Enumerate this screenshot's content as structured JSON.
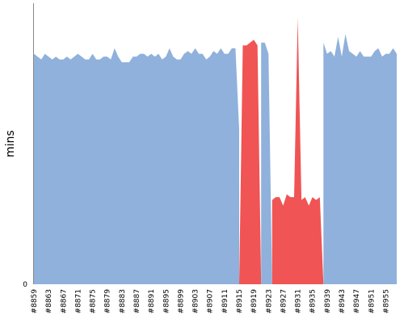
{
  "chart_data": {
    "type": "area",
    "ylabel": "mins",
    "xlabel": "",
    "ylim": [
      0,
      100
    ],
    "y_ticks": [
      0
    ],
    "x_tick_labels": [
      "#8859",
      "#8863",
      "#8867",
      "#8871",
      "#8875",
      "#8879",
      "#8883",
      "#8887",
      "#8891",
      "#8895",
      "#8899",
      "#8903",
      "#8907",
      "#8911",
      "#8915",
      "#8919",
      "#8923",
      "#8927",
      "#8931",
      "#8935",
      "#8939",
      "#8943",
      "#8947",
      "#8951",
      "#8955"
    ],
    "grid": false,
    "legend": "none",
    "x_start": 8859,
    "x_end": 8958,
    "colors": {
      "ok": "#8fb1db",
      "failed": "#f05454",
      "axis": "#888888"
    },
    "series": [
      {
        "status": "ok",
        "points": [
          [
            8859,
            82
          ],
          [
            8860,
            81
          ],
          [
            8861,
            80
          ],
          [
            8862,
            82
          ],
          [
            8863,
            81
          ],
          [
            8864,
            80
          ],
          [
            8865,
            81
          ],
          [
            8866,
            80
          ],
          [
            8867,
            80
          ],
          [
            8868,
            81
          ],
          [
            8869,
            80
          ],
          [
            8870,
            81
          ],
          [
            8871,
            82
          ],
          [
            8872,
            81
          ],
          [
            8873,
            80
          ],
          [
            8874,
            80
          ],
          [
            8875,
            82
          ],
          [
            8876,
            80
          ],
          [
            8877,
            80
          ],
          [
            8878,
            81
          ],
          [
            8879,
            81
          ],
          [
            8880,
            80
          ],
          [
            8881,
            84
          ],
          [
            8882,
            81
          ],
          [
            8883,
            79
          ],
          [
            8884,
            79
          ],
          [
            8885,
            79
          ],
          [
            8886,
            81
          ],
          [
            8887,
            81
          ],
          [
            8888,
            82
          ],
          [
            8889,
            82
          ],
          [
            8890,
            81
          ],
          [
            8891,
            82
          ],
          [
            8892,
            81
          ],
          [
            8893,
            82
          ],
          [
            8894,
            80
          ],
          [
            8895,
            81
          ],
          [
            8896,
            84
          ],
          [
            8897,
            81
          ],
          [
            8898,
            80
          ],
          [
            8899,
            80
          ],
          [
            8900,
            82
          ],
          [
            8901,
            83
          ],
          [
            8902,
            82
          ],
          [
            8903,
            84
          ],
          [
            8904,
            82
          ],
          [
            8905,
            82
          ],
          [
            8906,
            80
          ],
          [
            8907,
            81
          ],
          [
            8908,
            83
          ],
          [
            8909,
            82
          ],
          [
            8910,
            84
          ],
          [
            8911,
            82
          ],
          [
            8912,
            82
          ],
          [
            8913,
            84
          ],
          [
            8914,
            84
          ],
          [
            8915,
            55
          ]
        ]
      },
      {
        "status": "failed",
        "points": [
          [
            8915,
            0
          ],
          [
            8916,
            85
          ],
          [
            8917,
            85
          ],
          [
            8918,
            86
          ],
          [
            8919,
            87
          ],
          [
            8920,
            85
          ],
          [
            8921,
            0
          ]
        ]
      },
      {
        "status": "ok",
        "points": [
          [
            8921,
            86
          ],
          [
            8922,
            86
          ],
          [
            8923,
            82
          ],
          [
            8924,
            0
          ]
        ]
      },
      {
        "status": "failed",
        "points": [
          [
            8924,
            30
          ],
          [
            8925,
            31
          ],
          [
            8926,
            31
          ],
          [
            8927,
            28
          ],
          [
            8928,
            32
          ],
          [
            8929,
            31
          ],
          [
            8930,
            31
          ],
          [
            8931,
            95
          ],
          [
            8932,
            30
          ],
          [
            8933,
            31
          ],
          [
            8934,
            28
          ],
          [
            8935,
            31
          ],
          [
            8936,
            30
          ],
          [
            8937,
            31
          ],
          [
            8938,
            0
          ]
        ]
      },
      {
        "status": "ok",
        "points": [
          [
            8938,
            86
          ],
          [
            8939,
            82
          ],
          [
            8940,
            83
          ],
          [
            8941,
            81
          ],
          [
            8942,
            88
          ],
          [
            8943,
            81
          ],
          [
            8944,
            89
          ],
          [
            8945,
            83
          ],
          [
            8946,
            82
          ],
          [
            8947,
            81
          ],
          [
            8948,
            83
          ],
          [
            8949,
            81
          ],
          [
            8950,
            81
          ],
          [
            8951,
            81
          ],
          [
            8952,
            83
          ],
          [
            8953,
            84
          ],
          [
            8954,
            81
          ],
          [
            8955,
            82
          ],
          [
            8956,
            82
          ],
          [
            8957,
            84
          ],
          [
            8958,
            82
          ]
        ]
      }
    ]
  }
}
